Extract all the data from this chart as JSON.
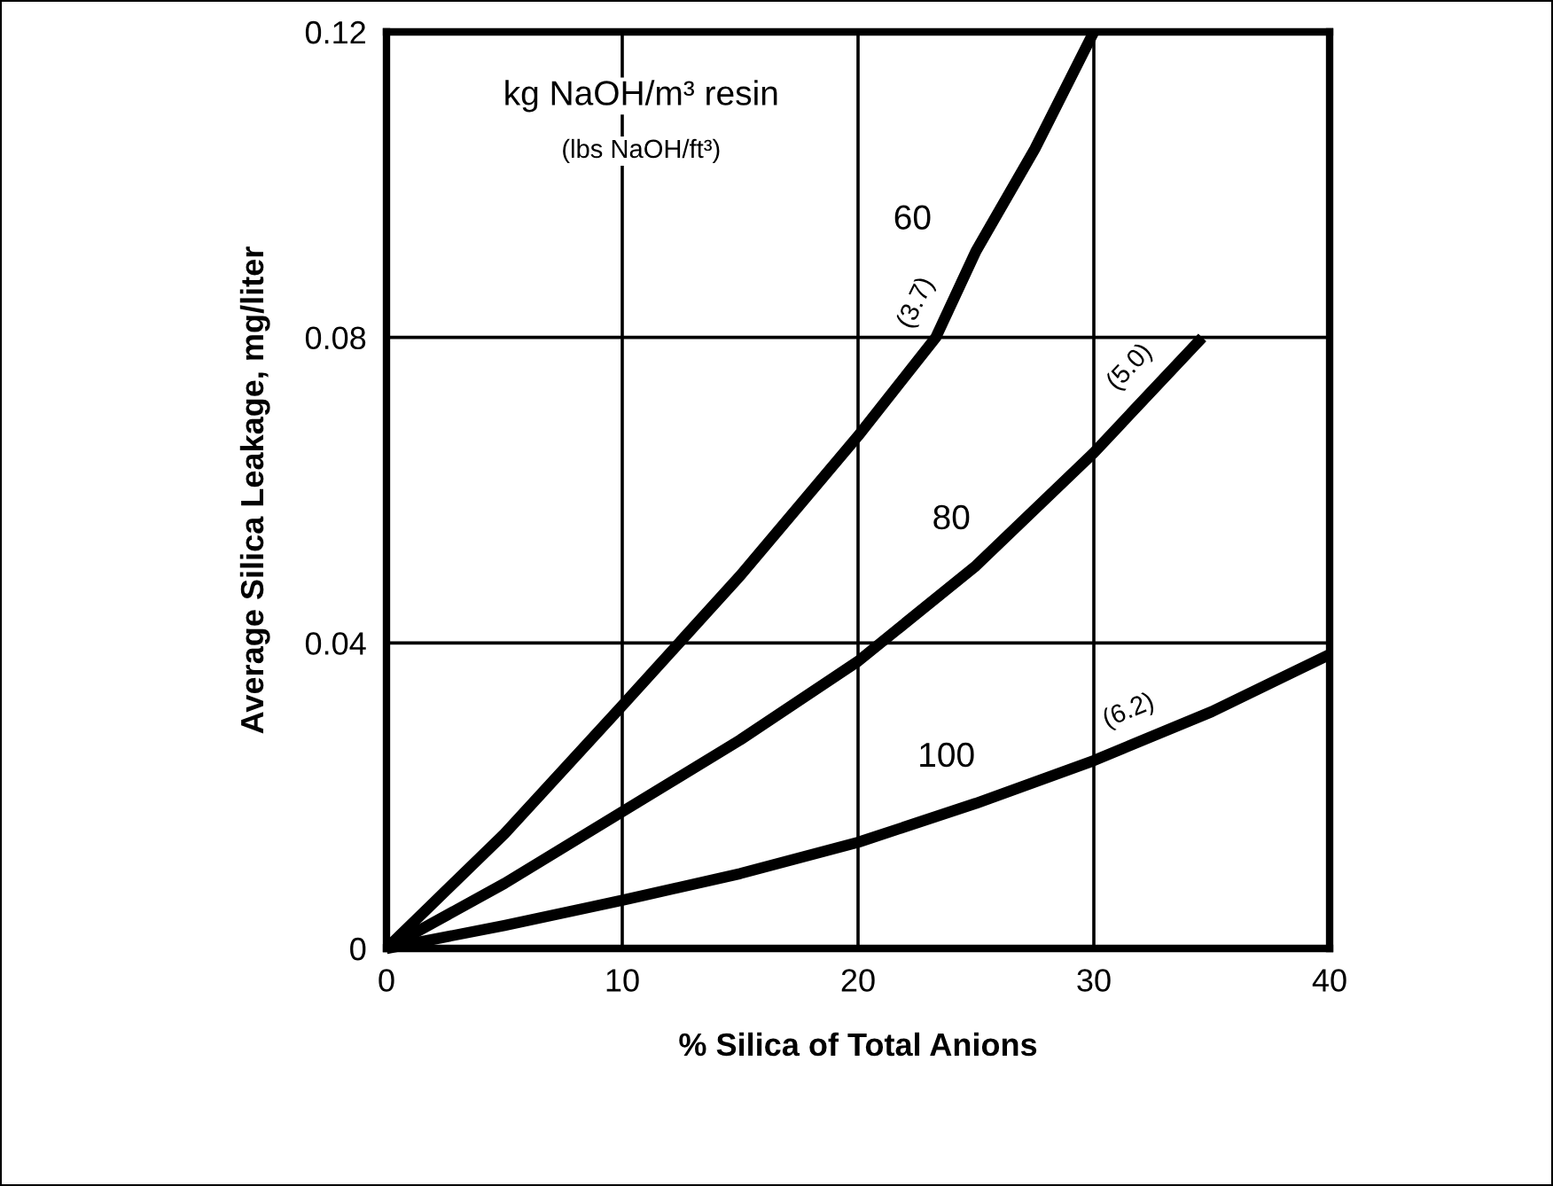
{
  "chart_data": {
    "type": "line",
    "xlabel": "% Silica of Total Anions",
    "ylabel": "Average Silica Leakage, mg/liter",
    "xlim": [
      0,
      40
    ],
    "xticks": [
      0,
      10,
      20,
      30,
      40
    ],
    "ylim": [
      0,
      0.12
    ],
    "yticks": [
      {
        "value": 0,
        "label": "0"
      },
      0.04,
      0.08,
      0.12
    ],
    "grid": true,
    "line_style": "solid",
    "marker": "none",
    "series": [
      {
        "name": "60",
        "color": "#000000",
        "x": [
          0,
          5,
          10,
          15,
          20,
          23.3,
          25,
          27.5,
          30
        ],
        "values": [
          0,
          0.015,
          0.0318,
          0.0488,
          0.0671,
          0.08,
          0.0913,
          0.1047,
          0.12
        ]
      },
      {
        "name": "80",
        "color": "#000000",
        "x": [
          0,
          5,
          10,
          15,
          20,
          25,
          30,
          34.6
        ],
        "values": [
          0,
          0.0085,
          0.0179,
          0.0273,
          0.0376,
          0.0501,
          0.0649,
          0.08
        ]
      },
      {
        "name": "100",
        "color": "#000000",
        "x": [
          0,
          5,
          10,
          15,
          20,
          25,
          30,
          35,
          40
        ],
        "values": [
          0,
          0.003,
          0.0063,
          0.0098,
          0.0139,
          0.019,
          0.0246,
          0.031,
          0.0385
        ]
      }
    ],
    "annotations": [
      "kg NaOH/m³ resin",
      "(lbs NaOH/ft³)",
      "(3.7)",
      "(5.0)",
      "(6.2)"
    ]
  }
}
